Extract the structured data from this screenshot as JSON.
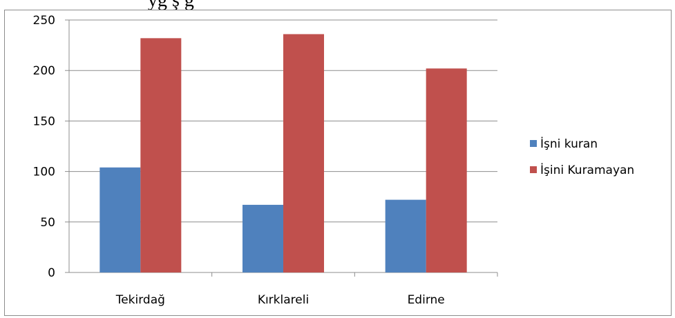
{
  "top_caption": "yg                    ş                                        g",
  "chart_data": {
    "type": "bar",
    "categories": [
      "Tekirdağ",
      "Kırklareli",
      "Edirne"
    ],
    "series": [
      {
        "name": "İşni kuran",
        "color": "#4f81bd",
        "values": [
          104,
          67,
          72
        ]
      },
      {
        "name": "İşini Kuramayan",
        "color": "#c0504d",
        "values": [
          232,
          236,
          202
        ]
      }
    ],
    "ylim": [
      0,
      250
    ],
    "yticks": [
      0,
      50,
      100,
      150,
      200,
      250
    ],
    "grid": true,
    "legend": "right",
    "title": "",
    "xlabel": "",
    "ylabel": ""
  }
}
